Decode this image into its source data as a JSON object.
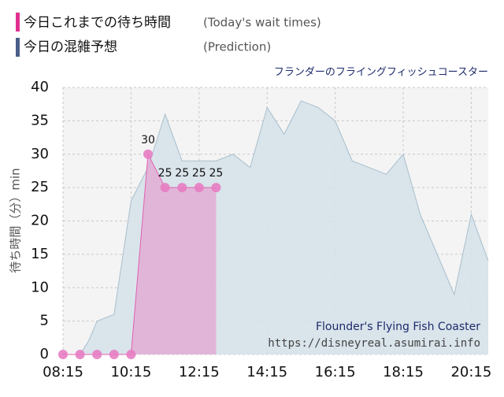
{
  "chart_data": {
    "type": "area",
    "title": "フランダーのフライングフィッシュコースター",
    "ylabel": "待ち時間（分）min",
    "watermark": "Flounder's Flying Fish Coaster",
    "source": "https://disneyreal.asumirai.info",
    "xlim": [
      "08:15",
      "20:45"
    ],
    "xticks": [
      "08:15",
      "10:15",
      "12:15",
      "14:15",
      "16:15",
      "18:15",
      "20:15"
    ],
    "ylim": [
      0,
      40
    ],
    "yticks": [
      0,
      5,
      10,
      15,
      20,
      25,
      30,
      35,
      40
    ],
    "grid": true,
    "series": [
      {
        "name": "今日の混雑予想",
        "note": "(Prediction)",
        "color": "#a9bfcd",
        "fill": "#d6e2ea",
        "x": [
          "08:15",
          "08:45",
          "09:00",
          "09:15",
          "09:45",
          "10:15",
          "10:45",
          "11:15",
          "11:45",
          "12:15",
          "12:45",
          "13:15",
          "13:45",
          "14:15",
          "14:45",
          "15:15",
          "15:45",
          "16:15",
          "16:45",
          "17:15",
          "17:45",
          "18:15",
          "18:45",
          "19:15",
          "19:45",
          "20:15",
          "20:45"
        ],
        "values": [
          0,
          0,
          2,
          5,
          6,
          23,
          28,
          36,
          29,
          29,
          29,
          30,
          28,
          37,
          33,
          38,
          37,
          35,
          29,
          28,
          27,
          30,
          21,
          15,
          9,
          21,
          14
        ]
      },
      {
        "name": "今日これまでの待ち時間",
        "note": "(Today's wait times)",
        "color": "#e060b0",
        "fill": "#e3a6d2",
        "x": [
          "08:15",
          "08:45",
          "09:15",
          "09:45",
          "10:15",
          "10:45",
          "11:15",
          "11:45",
          "12:15",
          "12:45"
        ],
        "values": [
          0,
          0,
          0,
          0,
          0,
          30,
          25,
          25,
          25,
          25
        ]
      }
    ]
  }
}
